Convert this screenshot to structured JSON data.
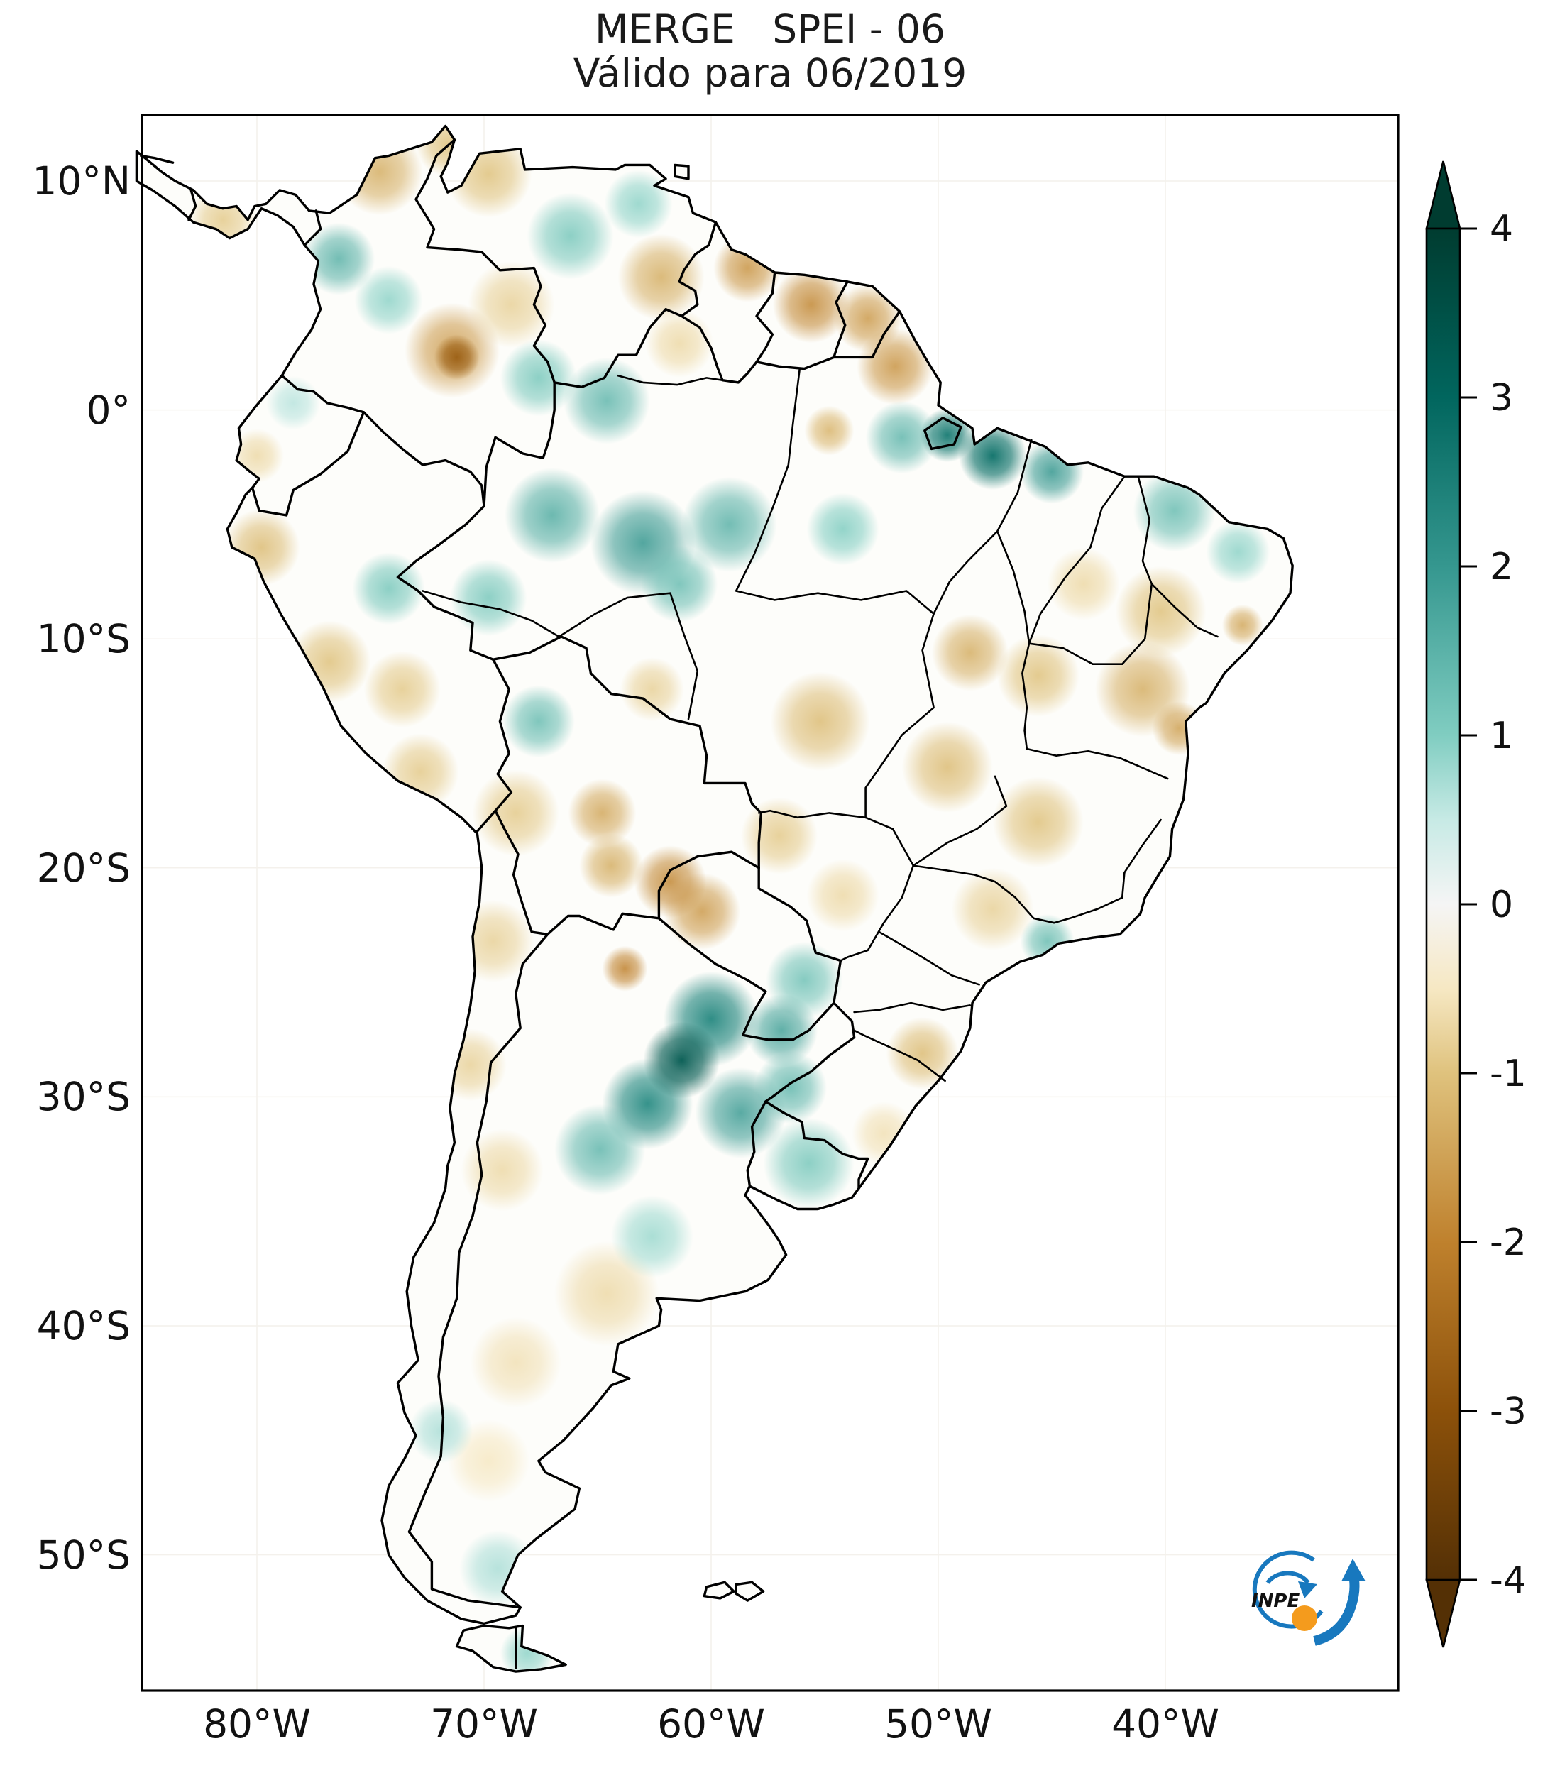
{
  "figure": {
    "title_line1": "MERGE   SPEI - 06",
    "title_line2": "Válido para 06/2019",
    "background": "#ffffff",
    "frame_color": "#000000",
    "grid_color": "#f4f1ec",
    "land_color": "#fdfdfa"
  },
  "logo": {
    "text": "INPE",
    "blue": "#1878be",
    "orange": "#f49b1d",
    "text_color": "#111111"
  },
  "chart_data": {
    "type": "heatmap",
    "subtype": "geographic-raster-map",
    "region_shown": "South America",
    "index": "SPEI-06",
    "dataset": "MERGE",
    "valid_for": "06/2019",
    "title": "MERGE   SPEI - 06",
    "subtitle": "Válido para 06/2019",
    "grid": "faint",
    "x_axis": {
      "tick_labels": [
        "80°W",
        "70°W",
        "60°W",
        "50°W",
        "40°W"
      ],
      "tick_lon_w": [
        80,
        70,
        60,
        50,
        40
      ],
      "range_lon_w": [
        85.1,
        29.7
      ]
    },
    "y_axis": {
      "tick_labels": [
        "10°N",
        "0°",
        "10°S",
        "20°S",
        "30°S",
        "40°S",
        "50°S"
      ],
      "tick_lat": [
        10,
        0,
        -10,
        -20,
        -30,
        -40,
        -50
      ],
      "range_lat": [
        12.9,
        -55.9
      ]
    },
    "colorbar": {
      "ticks": [
        4,
        3,
        2,
        1,
        0,
        -1,
        -2,
        -3,
        -4
      ],
      "range": [
        -4,
        4
      ],
      "extend": "both",
      "colormap": "BrBG",
      "position": "right",
      "stops": [
        {
          "value": -4,
          "color": "#543005"
        },
        {
          "value": -3,
          "color": "#8c510a"
        },
        {
          "value": -2,
          "color": "#bf812d"
        },
        {
          "value": -1,
          "color": "#dfc27d"
        },
        {
          "value": -0.5,
          "color": "#f6e8c3"
        },
        {
          "value": 0,
          "color": "#f5f5f5"
        },
        {
          "value": 0.5,
          "color": "#c7eae5"
        },
        {
          "value": 1,
          "color": "#80cdc1"
        },
        {
          "value": 2,
          "color": "#35978f"
        },
        {
          "value": 3,
          "color": "#01665e"
        },
        {
          "value": 4,
          "color": "#003c30"
        }
      ]
    },
    "regions": [
      {
        "name": "panama-isthmus-dry",
        "lon_w": 81.5,
        "lat": 8.3,
        "spei": -0.9,
        "radius_deg": 1.5
      },
      {
        "name": "caribbean-colombia-dry",
        "lon_w": 74.6,
        "lat": 10.4,
        "spei": -1.3,
        "radius_deg": 1.9
      },
      {
        "name": "guajira-dry",
        "lon_w": 71.6,
        "lat": 11.6,
        "spei": -1.0,
        "radius_deg": 1.4
      },
      {
        "name": "nw-venezuela-dry",
        "lon_w": 69.8,
        "lat": 10.3,
        "spei": -1.0,
        "radius_deg": 1.9
      },
      {
        "name": "choco-wet",
        "lon_w": 76.4,
        "lat": 6.6,
        "spei": 1.5,
        "radius_deg": 1.6
      },
      {
        "name": "magdalena-wet",
        "lon_w": 74.2,
        "lat": 4.8,
        "spei": 0.9,
        "radius_deg": 1.5
      },
      {
        "name": "se-colombia-dry-core",
        "lon_w": 71.2,
        "lat": 2.3,
        "spei": -2.7,
        "radius_deg": 1.0
      },
      {
        "name": "se-colombia-dry",
        "lon_w": 71.4,
        "lat": 2.6,
        "spei": -1.6,
        "radius_deg": 2.1
      },
      {
        "name": "llanos-dry",
        "lon_w": 68.8,
        "lat": 4.6,
        "spei": -0.8,
        "radius_deg": 1.9
      },
      {
        "name": "central-venezuela-wet",
        "lon_w": 66.2,
        "lat": 7.6,
        "spei": 1.1,
        "radius_deg": 1.9
      },
      {
        "name": "ne-venezuela-wet",
        "lon_w": 63.2,
        "lat": 9.0,
        "spei": 0.9,
        "radius_deg": 1.5
      },
      {
        "name": "guyana-highlands-dry",
        "lon_w": 62.2,
        "lat": 5.8,
        "spei": -1.3,
        "radius_deg": 1.9
      },
      {
        "name": "guyana-coast-dry",
        "lon_w": 58.4,
        "lat": 6.2,
        "spei": -1.7,
        "radius_deg": 1.5
      },
      {
        "name": "suriname-dry",
        "lon_w": 55.6,
        "lat": 4.6,
        "spei": -1.9,
        "radius_deg": 1.7
      },
      {
        "name": "french-guiana-dry",
        "lon_w": 53.1,
        "lat": 4.0,
        "spei": -1.6,
        "radius_deg": 1.5
      },
      {
        "name": "amapa-dry",
        "lon_w": 51.9,
        "lat": 1.9,
        "spei": -1.7,
        "radius_deg": 1.7
      },
      {
        "name": "roraima-dry",
        "lon_w": 61.4,
        "lat": 2.9,
        "spei": -0.7,
        "radius_deg": 1.5
      },
      {
        "name": "upper-rio-negro-wet",
        "lon_w": 67.6,
        "lat": 1.4,
        "spei": 1.1,
        "radius_deg": 1.7
      },
      {
        "name": "n-amazonas-wet",
        "lon_w": 64.6,
        "lat": 0.4,
        "spei": 1.4,
        "radius_deg": 1.9
      },
      {
        "name": "c-amazon-wet-w",
        "lon_w": 67.0,
        "lat": -4.6,
        "spei": 1.6,
        "radius_deg": 2.1
      },
      {
        "name": "c-amazon-wet",
        "lon_w": 63.0,
        "lat": -5.8,
        "spei": 2.0,
        "radius_deg": 2.3
      },
      {
        "name": "c-amazon-wet-e",
        "lon_w": 59.2,
        "lat": -5.0,
        "spei": 1.5,
        "radius_deg": 2.1
      },
      {
        "name": "madeira-wet",
        "lon_w": 61.4,
        "lat": -7.6,
        "spei": 1.3,
        "radius_deg": 1.7
      },
      {
        "name": "acre-wet",
        "lon_w": 69.8,
        "lat": -8.2,
        "spei": 1.1,
        "radius_deg": 1.7
      },
      {
        "name": "ucayali-wet",
        "lon_w": 74.2,
        "lat": -7.8,
        "spei": 1.1,
        "radius_deg": 1.6
      },
      {
        "name": "n-para-dry-spot",
        "lon_w": 54.8,
        "lat": -0.9,
        "spei": -1.2,
        "radius_deg": 1.1
      },
      {
        "name": "amazon-mouth-wet",
        "lon_w": 49.6,
        "lat": -1.1,
        "spei": 2.6,
        "radius_deg": 1.2
      },
      {
        "name": "marajo-east-wet",
        "lon_w": 47.6,
        "lat": -2.0,
        "spei": 2.8,
        "radius_deg": 1.5
      },
      {
        "name": "maranhao-coast-wet",
        "lon_w": 45.0,
        "lat": -2.7,
        "spei": 2.0,
        "radius_deg": 1.4
      },
      {
        "name": "ne-para-wet",
        "lon_w": 51.6,
        "lat": -1.2,
        "spei": 1.4,
        "radius_deg": 1.6
      },
      {
        "name": "ceara-wet",
        "lon_w": 39.6,
        "lat": -4.4,
        "spei": 1.3,
        "radius_deg": 1.8
      },
      {
        "name": "rn-pb-wet",
        "lon_w": 36.8,
        "lat": -6.2,
        "spei": 0.9,
        "radius_deg": 1.4
      },
      {
        "name": "xingu-wet",
        "lon_w": 54.2,
        "lat": -5.2,
        "spei": 1.0,
        "radius_deg": 1.6
      },
      {
        "name": "piaui-dry",
        "lon_w": 43.6,
        "lat": -7.6,
        "spei": -0.7,
        "radius_deg": 1.6
      },
      {
        "name": "ne-interior-dry",
        "lon_w": 40.2,
        "lat": -8.8,
        "spei": -1.0,
        "radius_deg": 2.0
      },
      {
        "name": "ne-coast-dry-spot",
        "lon_w": 36.6,
        "lat": -9.4,
        "spei": -1.4,
        "radius_deg": 0.9
      },
      {
        "name": "bahia-dry",
        "lon_w": 41.0,
        "lat": -12.2,
        "spei": -1.3,
        "radius_deg": 2.1
      },
      {
        "name": "bahia-coast-dry",
        "lon_w": 39.4,
        "lat": -13.9,
        "spei": -1.5,
        "radius_deg": 1.2
      },
      {
        "name": "tocantins-dry",
        "lon_w": 48.6,
        "lat": -10.6,
        "spei": -1.3,
        "radius_deg": 1.7
      },
      {
        "name": "w-bahia-dry",
        "lon_w": 45.6,
        "lat": -11.6,
        "spei": -1.0,
        "radius_deg": 1.8
      },
      {
        "name": "mato-grosso-dry",
        "lon_w": 55.2,
        "lat": -13.6,
        "spei": -1.1,
        "radius_deg": 2.2
      },
      {
        "name": "rondonia-dry",
        "lon_w": 62.6,
        "lat": -12.2,
        "spei": -0.8,
        "radius_deg": 1.4
      },
      {
        "name": "goias-dry",
        "lon_w": 49.6,
        "lat": -15.6,
        "spei": -1.1,
        "radius_deg": 2.0
      },
      {
        "name": "minas-dry",
        "lon_w": 45.6,
        "lat": -18.0,
        "spei": -1.0,
        "radius_deg": 2.0
      },
      {
        "name": "sao-paulo-dry",
        "lon_w": 47.6,
        "lat": -21.8,
        "spei": -0.8,
        "radius_deg": 1.8
      },
      {
        "name": "rio-coast-wet",
        "lon_w": 45.2,
        "lat": -23.2,
        "spei": 1.3,
        "radius_deg": 1.2
      },
      {
        "name": "guayas-dry",
        "lon_w": 80.0,
        "lat": -2.0,
        "spei": -0.7,
        "radius_deg": 1.2
      },
      {
        "name": "ecuador-n-wet",
        "lon_w": 78.4,
        "lat": 0.3,
        "spei": 0.6,
        "radius_deg": 1.2
      },
      {
        "name": "peru-coast-n-dry",
        "lon_w": 79.8,
        "lat": -6.0,
        "spei": -1.1,
        "radius_deg": 1.7
      },
      {
        "name": "peru-coast-c-dry",
        "lon_w": 76.8,
        "lat": -11.0,
        "spei": -1.0,
        "radius_deg": 1.8
      },
      {
        "name": "peru-andes-dry",
        "lon_w": 73.6,
        "lat": -12.2,
        "spei": -0.9,
        "radius_deg": 1.7
      },
      {
        "name": "peru-coast-s-dry",
        "lon_w": 72.8,
        "lat": -15.8,
        "spei": -0.9,
        "radius_deg": 1.7
      },
      {
        "name": "beni-wet",
        "lon_w": 67.6,
        "lat": -13.6,
        "spei": 1.3,
        "radius_deg": 1.6
      },
      {
        "name": "altiplano-dry",
        "lon_w": 68.6,
        "lat": -17.6,
        "spei": -0.9,
        "radius_deg": 1.9
      },
      {
        "name": "santa-cruz-dry",
        "lon_w": 64.8,
        "lat": -17.6,
        "spei": -1.4,
        "radius_deg": 1.5
      },
      {
        "name": "chuquisaca-dry",
        "lon_w": 64.4,
        "lat": -19.9,
        "spei": -1.3,
        "radius_deg": 1.4
      },
      {
        "name": "bolivia-chaco-dry",
        "lon_w": 61.8,
        "lat": -20.6,
        "spei": -1.9,
        "radius_deg": 1.6
      },
      {
        "name": "paraguay-chaco-dry",
        "lon_w": 60.4,
        "lat": -21.9,
        "spei": -1.6,
        "radius_deg": 1.7
      },
      {
        "name": "salta-dry-spot",
        "lon_w": 63.8,
        "lat": -24.4,
        "spei": -2.0,
        "radius_deg": 1.0
      },
      {
        "name": "pantanal-dry",
        "lon_w": 57.0,
        "lat": -18.6,
        "spei": -0.9,
        "radius_deg": 1.7
      },
      {
        "name": "ms-south-dry",
        "lon_w": 54.2,
        "lat": -21.2,
        "spei": -0.7,
        "radius_deg": 1.6
      },
      {
        "name": "atacama-dry",
        "lon_w": 69.6,
        "lat": -23.2,
        "spei": -0.8,
        "radius_deg": 1.8
      },
      {
        "name": "chile-center-dry",
        "lon_w": 70.6,
        "lat": -28.6,
        "spei": -0.8,
        "radius_deg": 1.6
      },
      {
        "name": "cuyo-dry",
        "lon_w": 69.2,
        "lat": -33.2,
        "spei": -0.7,
        "radius_deg": 1.8
      },
      {
        "name": "e-paraguay-wet",
        "lon_w": 55.9,
        "lat": -24.9,
        "spei": 1.2,
        "radius_deg": 1.7
      },
      {
        "name": "misiones-wet",
        "lon_w": 56.9,
        "lat": -27.1,
        "spei": 1.8,
        "radius_deg": 1.6
      },
      {
        "name": "ne-argentina-wet-core",
        "lon_w": 61.3,
        "lat": -28.4,
        "spei": 3.3,
        "radius_deg": 1.7
      },
      {
        "name": "ne-argentina-wet-n",
        "lon_w": 60.0,
        "lat": -26.6,
        "spei": 2.3,
        "radius_deg": 2.1
      },
      {
        "name": "santa-fe-wet",
        "lon_w": 62.8,
        "lat": -30.3,
        "spei": 2.2,
        "radius_deg": 2.0
      },
      {
        "name": "entre-rios-wet",
        "lon_w": 58.7,
        "lat": -30.7,
        "spei": 1.9,
        "radius_deg": 2.0
      },
      {
        "name": "cordoba-wet",
        "lon_w": 64.9,
        "lat": -32.3,
        "spei": 1.4,
        "radius_deg": 2.0
      },
      {
        "name": "uruguay-wet",
        "lon_w": 55.7,
        "lat": -32.9,
        "spei": 1.1,
        "radius_deg": 2.0
      },
      {
        "name": "rs-west-wet",
        "lon_w": 56.5,
        "lat": -29.6,
        "spei": 1.4,
        "radius_deg": 1.6
      },
      {
        "name": "sc-rs-dry",
        "lon_w": 50.7,
        "lat": -28.1,
        "spei": -1.1,
        "radius_deg": 1.6
      },
      {
        "name": "rs-coast-dry",
        "lon_w": 52.4,
        "lat": -31.6,
        "spei": -0.6,
        "radius_deg": 1.4
      },
      {
        "name": "buenos-aires-s-wet",
        "lon_w": 62.6,
        "lat": -36.1,
        "spei": 0.8,
        "radius_deg": 1.8
      },
      {
        "name": "la-pampa-dry",
        "lon_w": 64.6,
        "lat": -38.6,
        "spei": -0.7,
        "radius_deg": 2.3
      },
      {
        "name": "n-patagonia-dry",
        "lon_w": 68.6,
        "lat": -41.6,
        "spei": -0.6,
        "radius_deg": 2.0
      },
      {
        "name": "c-patagonia-dry",
        "lon_w": 69.8,
        "lat": -45.9,
        "spei": -0.5,
        "radius_deg": 1.8
      },
      {
        "name": "andes-patagonia-wet",
        "lon_w": 71.9,
        "lat": -44.6,
        "spei": 0.7,
        "radius_deg": 1.4
      },
      {
        "name": "s-patagonia-wet",
        "lon_w": 69.4,
        "lat": -50.6,
        "spei": 0.7,
        "radius_deg": 1.7
      },
      {
        "name": "tierra-del-fuego-wet",
        "lon_w": 68.1,
        "lat": -54.3,
        "spei": 0.9,
        "radius_deg": 1.2
      }
    ]
  }
}
